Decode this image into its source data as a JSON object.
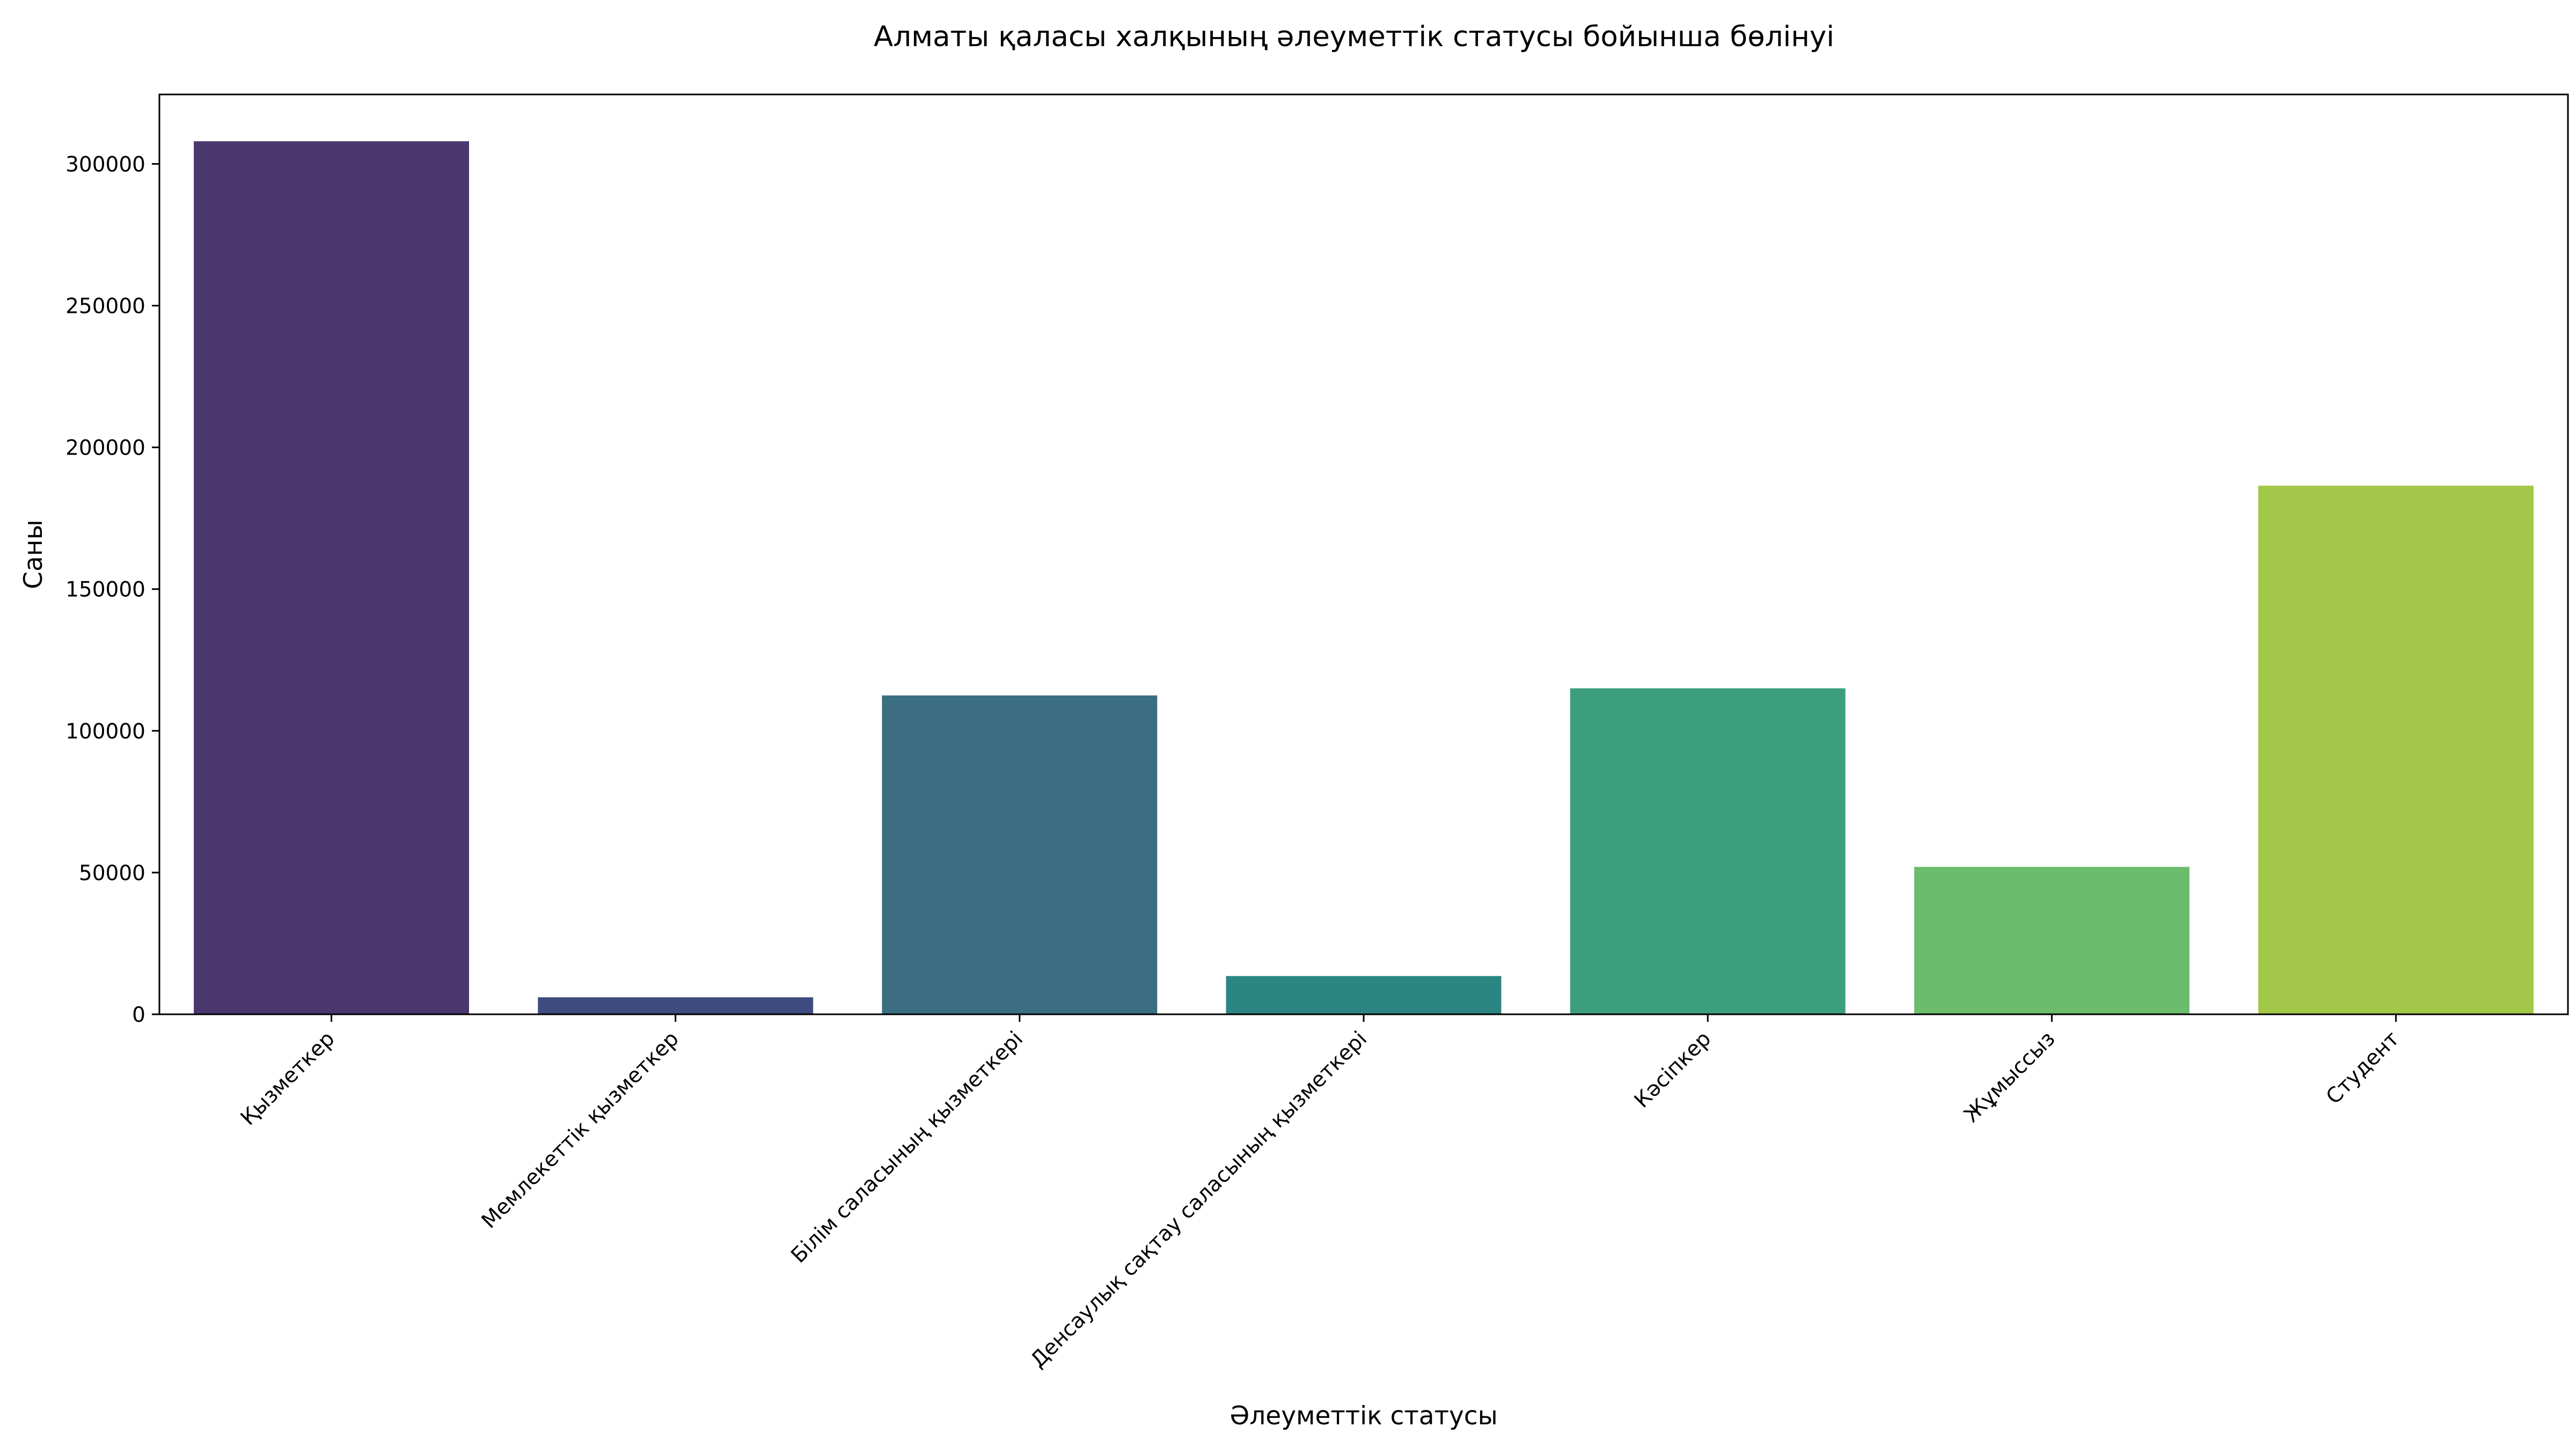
{
  "chart_data": {
    "type": "bar",
    "title": "Алматы қаласы халқының әлеуметтік статусы бойынша бөлінуі",
    "xlabel": "Әлеуметтік статусы",
    "ylabel": "Саны",
    "categories": [
      "Қызметкер",
      "Мемлекеттік қызметкер",
      "Білім саласының қызметкері",
      "Денсаулық сақтау саласының қызметкері",
      "Кәсіпкер",
      "Жұмыссыз",
      "Студент"
    ],
    "values": [
      308000,
      6000,
      112500,
      13500,
      115000,
      52000,
      186500
    ],
    "colors": [
      "#4a376e",
      "#3e4c7f",
      "#3a6e80",
      "#2b8582",
      "#3c9e7c",
      "#6bbc6c",
      "#a3c748"
    ],
    "ylim": [
      0,
      324500
    ],
    "yticks": [
      0,
      50000,
      100000,
      150000,
      200000,
      250000,
      300000
    ],
    "grid": false,
    "legend": "none"
  }
}
